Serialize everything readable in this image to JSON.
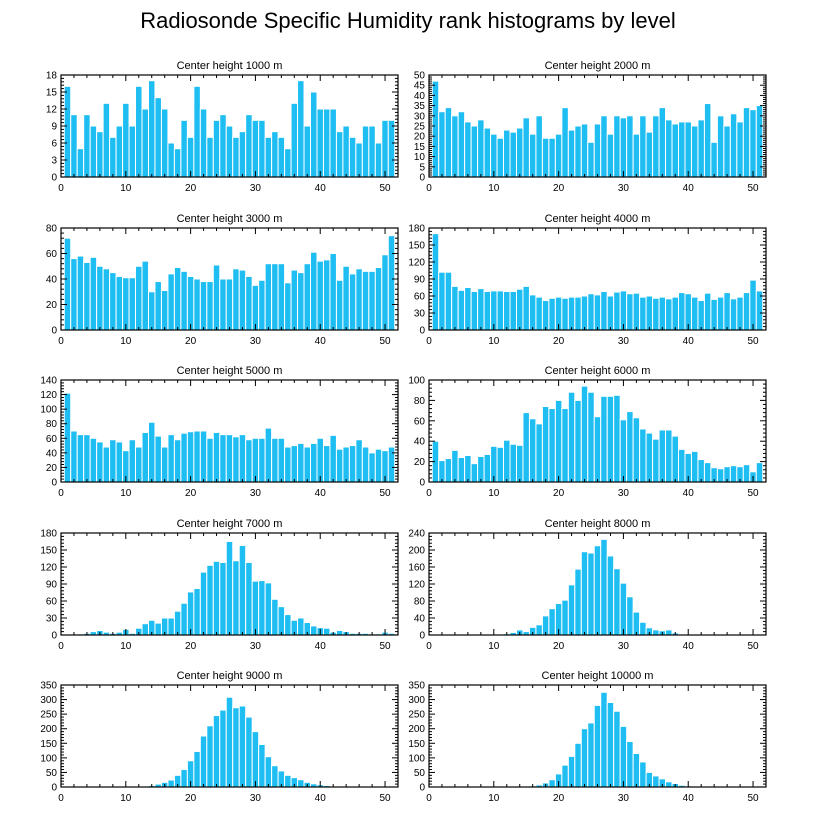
{
  "title": "Radiosonde Specific Humidity rank histograms by level",
  "colors": {
    "bar": "#1ebdf2",
    "bar_edge": "#ffffff",
    "axis": "#000000"
  },
  "chart_data": [
    {
      "type": "bar",
      "title": "Center height 1000 m",
      "x": [
        1,
        2,
        3,
        4,
        5,
        6,
        7,
        8,
        9,
        10,
        11,
        12,
        13,
        14,
        15,
        16,
        17,
        18,
        19,
        20,
        21,
        22,
        23,
        24,
        25,
        26,
        27,
        28,
        29,
        30,
        31,
        32,
        33,
        34,
        35,
        36,
        37,
        38,
        39,
        40,
        41,
        42,
        43,
        44,
        45,
        46,
        47,
        48,
        49,
        50,
        51
      ],
      "values": [
        16,
        11,
        5,
        11,
        9,
        8,
        13,
        7,
        9,
        13,
        9,
        16,
        12,
        17,
        14,
        12,
        6,
        5,
        10,
        7,
        16,
        12,
        7,
        10,
        11,
        9,
        7,
        8,
        11,
        10,
        10,
        7,
        8,
        7,
        5,
        13,
        17,
        9,
        15,
        12,
        12,
        12,
        8,
        9,
        7,
        6,
        9,
        9,
        6,
        10,
        10
      ],
      "xlim": [
        0,
        52
      ],
      "ylim": [
        0,
        18
      ],
      "xticks": [
        0,
        10,
        20,
        30,
        40,
        50
      ],
      "yticks": [
        0,
        3,
        6,
        9,
        12,
        15,
        18
      ]
    },
    {
      "type": "bar",
      "title": "Center height 2000 m",
      "x": [
        1,
        2,
        3,
        4,
        5,
        6,
        7,
        8,
        9,
        10,
        11,
        12,
        13,
        14,
        15,
        16,
        17,
        18,
        19,
        20,
        21,
        22,
        23,
        24,
        25,
        26,
        27,
        28,
        29,
        30,
        31,
        32,
        33,
        34,
        35,
        36,
        37,
        38,
        39,
        40,
        41,
        42,
        43,
        44,
        45,
        46,
        47,
        48,
        49,
        50,
        51
      ],
      "values": [
        47,
        32,
        34,
        30,
        32,
        27,
        25,
        28,
        24,
        21,
        19,
        23,
        22,
        24,
        29,
        21,
        30,
        19,
        19,
        21,
        34,
        23,
        25,
        26,
        17,
        26,
        30,
        21,
        30,
        29,
        30,
        21,
        30,
        22,
        30,
        34,
        28,
        26,
        27,
        27,
        25,
        28,
        36,
        17,
        30,
        25,
        31,
        27,
        34,
        33,
        35
      ],
      "xlim": [
        0,
        52
      ],
      "ylim": [
        0,
        50
      ],
      "xticks": [
        0,
        10,
        20,
        30,
        40,
        50
      ],
      "yticks": [
        0,
        5,
        10,
        15,
        20,
        25,
        30,
        35,
        40,
        45,
        50
      ]
    },
    {
      "type": "bar",
      "title": "Center height 3000 m",
      "x": [
        1,
        2,
        3,
        4,
        5,
        6,
        7,
        8,
        9,
        10,
        11,
        12,
        13,
        14,
        15,
        16,
        17,
        18,
        19,
        20,
        21,
        22,
        23,
        24,
        25,
        26,
        27,
        28,
        29,
        30,
        31,
        32,
        33,
        34,
        35,
        36,
        37,
        38,
        39,
        40,
        41,
        42,
        43,
        44,
        45,
        46,
        47,
        48,
        49,
        50,
        51
      ],
      "values": [
        72,
        56,
        58,
        53,
        57,
        50,
        48,
        45,
        42,
        41,
        41,
        50,
        54,
        30,
        38,
        31,
        44,
        49,
        46,
        42,
        40,
        38,
        38,
        51,
        40,
        40,
        48,
        47,
        42,
        35,
        39,
        52,
        52,
        52,
        37,
        47,
        45,
        52,
        61,
        54,
        55,
        60,
        39,
        50,
        44,
        48,
        46,
        46,
        49,
        59,
        74
      ],
      "xlim": [
        0,
        52
      ],
      "ylim": [
        0,
        80
      ],
      "xticks": [
        0,
        10,
        20,
        30,
        40,
        50
      ],
      "yticks": [
        0,
        20,
        40,
        60,
        80
      ]
    },
    {
      "type": "bar",
      "title": "Center height 4000 m",
      "x": [
        1,
        2,
        3,
        4,
        5,
        6,
        7,
        8,
        9,
        10,
        11,
        12,
        13,
        14,
        15,
        16,
        17,
        18,
        19,
        20,
        21,
        22,
        23,
        24,
        25,
        26,
        27,
        28,
        29,
        30,
        31,
        32,
        33,
        34,
        35,
        36,
        37,
        38,
        39,
        40,
        41,
        42,
        43,
        44,
        45,
        46,
        47,
        48,
        49,
        50,
        51
      ],
      "values": [
        170,
        102,
        102,
        77,
        70,
        75,
        68,
        73,
        68,
        69,
        69,
        68,
        68,
        72,
        77,
        62,
        58,
        52,
        56,
        58,
        56,
        58,
        58,
        60,
        64,
        62,
        68,
        60,
        67,
        69,
        64,
        65,
        58,
        60,
        56,
        58,
        55,
        58,
        66,
        64,
        58,
        52,
        65,
        54,
        58,
        66,
        55,
        58,
        66,
        88,
        69
      ],
      "xlim": [
        0,
        52
      ],
      "ylim": [
        0,
        180
      ],
      "xticks": [
        0,
        10,
        20,
        30,
        40,
        50
      ],
      "yticks": [
        0,
        30,
        60,
        90,
        120,
        150,
        180
      ]
    },
    {
      "type": "bar",
      "title": "Center height 5000 m",
      "x": [
        1,
        2,
        3,
        4,
        5,
        6,
        7,
        8,
        9,
        10,
        11,
        12,
        13,
        14,
        15,
        16,
        17,
        18,
        19,
        20,
        21,
        22,
        23,
        24,
        25,
        26,
        27,
        28,
        29,
        30,
        31,
        32,
        33,
        34,
        35,
        36,
        37,
        38,
        39,
        40,
        41,
        42,
        43,
        44,
        45,
        46,
        47,
        48,
        49,
        50,
        51
      ],
      "values": [
        122,
        70,
        65,
        65,
        60,
        55,
        48,
        58,
        55,
        43,
        58,
        48,
        68,
        82,
        63,
        48,
        65,
        58,
        67,
        69,
        70,
        70,
        60,
        68,
        65,
        65,
        62,
        65,
        58,
        60,
        60,
        74,
        60,
        60,
        48,
        50,
        53,
        48,
        53,
        60,
        50,
        64,
        45,
        48,
        50,
        58,
        48,
        40,
        45,
        43,
        48
      ],
      "xlim": [
        0,
        52
      ],
      "ylim": [
        0,
        140
      ],
      "xticks": [
        0,
        10,
        20,
        30,
        40,
        50
      ],
      "yticks": [
        0,
        20,
        40,
        60,
        80,
        100,
        120,
        140
      ]
    },
    {
      "type": "bar",
      "title": "Center height 6000 m",
      "x": [
        1,
        2,
        3,
        4,
        5,
        6,
        7,
        8,
        9,
        10,
        11,
        12,
        13,
        14,
        15,
        16,
        17,
        18,
        19,
        20,
        21,
        22,
        23,
        24,
        25,
        26,
        27,
        28,
        29,
        30,
        31,
        32,
        33,
        34,
        35,
        36,
        37,
        38,
        39,
        40,
        41,
        42,
        43,
        44,
        45,
        46,
        47,
        48,
        49,
        50,
        51
      ],
      "values": [
        40,
        21,
        23,
        31,
        24,
        26,
        18,
        25,
        27,
        35,
        34,
        41,
        37,
        36,
        68,
        62,
        57,
        74,
        72,
        80,
        72,
        88,
        80,
        94,
        88,
        64,
        84,
        84,
        85,
        61,
        69,
        63,
        52,
        48,
        42,
        51,
        51,
        45,
        32,
        28,
        30,
        22,
        19,
        14,
        13,
        15,
        16,
        15,
        17,
        10,
        19
      ],
      "xlim": [
        0,
        52
      ],
      "ylim": [
        0,
        100
      ],
      "xticks": [
        0,
        10,
        20,
        30,
        40,
        50
      ],
      "yticks": [
        0,
        20,
        40,
        60,
        80,
        100
      ]
    },
    {
      "type": "bar",
      "title": "Center height 7000 m",
      "x": [
        1,
        2,
        3,
        4,
        5,
        6,
        7,
        8,
        9,
        10,
        11,
        12,
        13,
        14,
        15,
        16,
        17,
        18,
        19,
        20,
        21,
        22,
        23,
        24,
        25,
        26,
        27,
        28,
        29,
        30,
        31,
        32,
        33,
        34,
        35,
        36,
        37,
        38,
        39,
        40,
        41,
        42,
        43,
        44,
        45,
        46,
        47,
        48,
        49,
        50,
        51
      ],
      "values": [
        1,
        1,
        2,
        3,
        6,
        8,
        5,
        3,
        5,
        10,
        3,
        12,
        20,
        26,
        21,
        30,
        30,
        42,
        56,
        76,
        82,
        111,
        123,
        130,
        128,
        165,
        131,
        158,
        128,
        95,
        96,
        92,
        63,
        50,
        36,
        26,
        30,
        22,
        16,
        13,
        12,
        5,
        8,
        6,
        3,
        3,
        3,
        2,
        2,
        5,
        3
      ],
      "xlim": [
        0,
        52
      ],
      "ylim": [
        0,
        180
      ],
      "xticks": [
        0,
        10,
        20,
        30,
        40,
        50
      ],
      "yticks": [
        0,
        30,
        60,
        90,
        120,
        150,
        180
      ]
    },
    {
      "type": "bar",
      "title": "Center height 8000 m",
      "x": [
        1,
        2,
        3,
        4,
        5,
        6,
        7,
        8,
        9,
        10,
        11,
        12,
        13,
        14,
        15,
        16,
        17,
        18,
        19,
        20,
        21,
        22,
        23,
        24,
        25,
        26,
        27,
        28,
        29,
        30,
        31,
        32,
        33,
        34,
        35,
        36,
        37,
        38,
        39,
        40,
        41,
        42,
        43,
        44,
        45,
        46,
        47,
        48,
        49,
        50,
        51
      ],
      "values": [
        0,
        0,
        0,
        0,
        0,
        0,
        0,
        0,
        0,
        1,
        2,
        3,
        6,
        12,
        8,
        18,
        24,
        45,
        62,
        74,
        82,
        118,
        155,
        196,
        193,
        210,
        225,
        186,
        156,
        122,
        90,
        54,
        30,
        17,
        12,
        10,
        12,
        5,
        2,
        2,
        1,
        1,
        0,
        0,
        0,
        0,
        0,
        0,
        0,
        0,
        0
      ],
      "xlim": [
        0,
        52
      ],
      "ylim": [
        0,
        240
      ],
      "xticks": [
        0,
        10,
        20,
        30,
        40,
        50
      ],
      "yticks": [
        0,
        40,
        80,
        120,
        160,
        200,
        240
      ]
    },
    {
      "type": "bar",
      "title": "Center height 9000 m",
      "x": [
        1,
        2,
        3,
        4,
        5,
        6,
        7,
        8,
        9,
        10,
        11,
        12,
        13,
        14,
        15,
        16,
        17,
        18,
        19,
        20,
        21,
        22,
        23,
        24,
        25,
        26,
        27,
        28,
        29,
        30,
        31,
        32,
        33,
        34,
        35,
        36,
        37,
        38,
        39,
        40,
        41,
        42,
        43,
        44,
        45,
        46,
        47,
        48,
        49,
        50,
        51
      ],
      "values": [
        0,
        0,
        0,
        0,
        0,
        0,
        0,
        0,
        0,
        0,
        1,
        1,
        2,
        5,
        10,
        16,
        24,
        40,
        60,
        90,
        122,
        175,
        210,
        245,
        264,
        308,
        272,
        278,
        240,
        190,
        146,
        104,
        73,
        55,
        40,
        32,
        25,
        16,
        11,
        8,
        5,
        3,
        2,
        1,
        1,
        0,
        0,
        0,
        0,
        0,
        0
      ],
      "xlim": [
        0,
        52
      ],
      "ylim": [
        0,
        350
      ],
      "xticks": [
        0,
        10,
        20,
        30,
        40,
        50
      ],
      "yticks": [
        0,
        50,
        100,
        150,
        200,
        250,
        300,
        350
      ]
    },
    {
      "type": "bar",
      "title": "Center height 10000 m",
      "x": [
        1,
        2,
        3,
        4,
        5,
        6,
        7,
        8,
        9,
        10,
        11,
        12,
        13,
        14,
        15,
        16,
        17,
        18,
        19,
        20,
        21,
        22,
        23,
        24,
        25,
        26,
        27,
        28,
        29,
        30,
        31,
        32,
        33,
        34,
        35,
        36,
        37,
        38,
        39,
        40,
        41,
        42,
        43,
        44,
        45,
        46,
        47,
        48,
        49,
        50,
        51
      ],
      "values": [
        0,
        0,
        0,
        0,
        0,
        0,
        0,
        0,
        0,
        0,
        0,
        0,
        0,
        1,
        2,
        4,
        7,
        14,
        25,
        45,
        75,
        105,
        150,
        200,
        220,
        280,
        325,
        290,
        260,
        208,
        156,
        115,
        86,
        50,
        38,
        28,
        18,
        12,
        6,
        4,
        2,
        1,
        0,
        0,
        0,
        0,
        0,
        0,
        0,
        0,
        0
      ],
      "xlim": [
        0,
        52
      ],
      "ylim": [
        0,
        350
      ],
      "xticks": [
        0,
        10,
        20,
        30,
        40,
        50
      ],
      "yticks": [
        0,
        50,
        100,
        150,
        200,
        250,
        300,
        350
      ]
    }
  ]
}
